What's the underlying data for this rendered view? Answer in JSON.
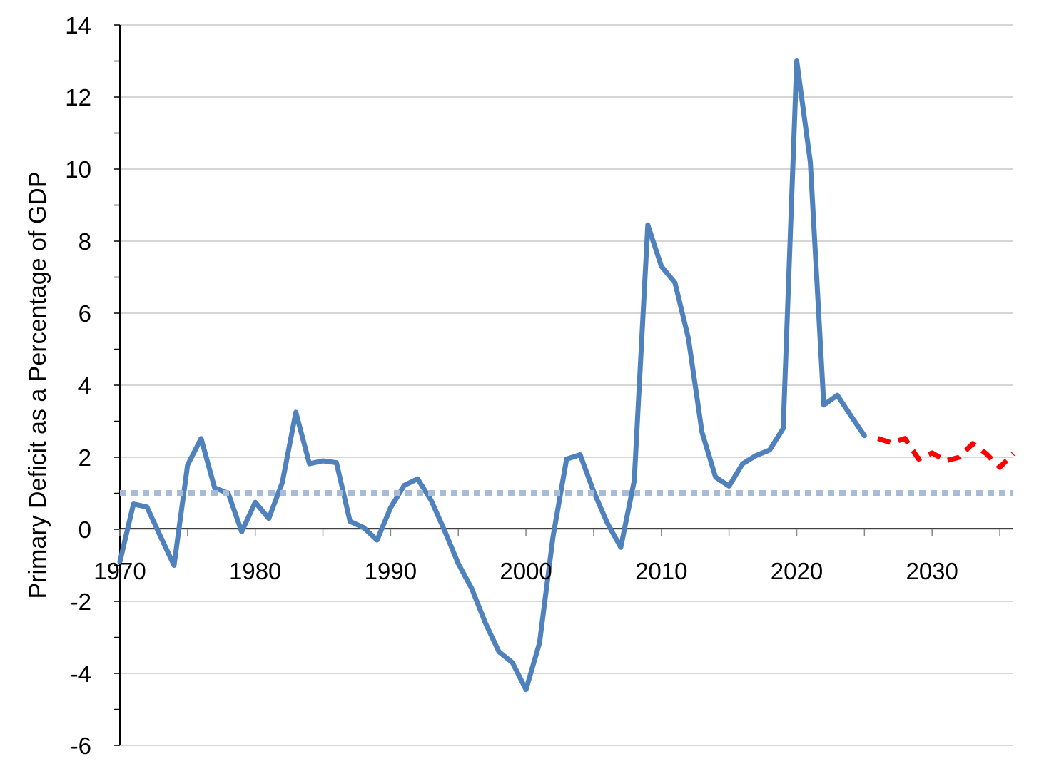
{
  "chart_data": {
    "type": "line",
    "title": "",
    "xlabel": "",
    "ylabel": "Primary Deficit as a Percentage of GDP",
    "xlim": [
      1970,
      2036
    ],
    "ylim": [
      -6,
      14
    ],
    "x_ticks": [
      "1970",
      "1980",
      "1990",
      "2000",
      "2010",
      "2020",
      "2030"
    ],
    "y_ticks": [
      "14",
      "12",
      "10",
      "8",
      "6",
      "4",
      "2",
      "0",
      "-2",
      "-4",
      "-6"
    ],
    "grid": "horizontal",
    "series": [
      {
        "style": "solid",
        "color": "#4F81BD",
        "points": [
          [
            1970,
            -0.9
          ],
          [
            1971,
            0.7
          ],
          [
            1972,
            0.62
          ],
          [
            1973,
            -0.2
          ],
          [
            1974,
            -1.0
          ],
          [
            1975,
            1.78
          ],
          [
            1976,
            2.52
          ],
          [
            1977,
            1.15
          ],
          [
            1978,
            1.0
          ],
          [
            1979,
            -0.07
          ],
          [
            1980,
            0.75
          ],
          [
            1981,
            0.3
          ],
          [
            1982,
            1.3
          ],
          [
            1983,
            3.25
          ],
          [
            1984,
            1.82
          ],
          [
            1985,
            1.9
          ],
          [
            1986,
            1.85
          ],
          [
            1987,
            0.22
          ],
          [
            1988,
            0.05
          ],
          [
            1989,
            -0.3
          ],
          [
            1990,
            0.6
          ],
          [
            1991,
            1.22
          ],
          [
            1992,
            1.4
          ],
          [
            1993,
            0.8
          ],
          [
            1994,
            -0.05
          ],
          [
            1995,
            -0.95
          ],
          [
            1996,
            -1.65
          ],
          [
            1997,
            -2.6
          ],
          [
            1998,
            -3.4
          ],
          [
            1999,
            -3.7
          ],
          [
            2000,
            -4.45
          ],
          [
            2001,
            -3.15
          ],
          [
            2002,
            -0.2
          ],
          [
            2003,
            1.95
          ],
          [
            2004,
            2.07
          ],
          [
            2005,
            1.05
          ],
          [
            2006,
            0.18
          ],
          [
            2007,
            -0.5
          ],
          [
            2008,
            1.35
          ],
          [
            2009,
            8.45
          ],
          [
            2010,
            7.3
          ],
          [
            2011,
            6.85
          ],
          [
            2012,
            5.3
          ],
          [
            2013,
            2.7
          ],
          [
            2014,
            1.45
          ],
          [
            2015,
            1.2
          ],
          [
            2016,
            1.82
          ],
          [
            2017,
            2.05
          ],
          [
            2018,
            2.2
          ],
          [
            2019,
            2.8
          ],
          [
            2020,
            13.0
          ],
          [
            2021,
            10.2
          ],
          [
            2022,
            3.45
          ],
          [
            2023,
            3.72
          ],
          [
            2024,
            3.15
          ],
          [
            2025,
            2.6
          ]
        ]
      },
      {
        "style": "dashed",
        "color": "#FF0000",
        "points": [
          [
            2026,
            2.52
          ],
          [
            2027,
            2.4
          ],
          [
            2028,
            2.52
          ],
          [
            2029,
            1.95
          ],
          [
            2030,
            2.12
          ],
          [
            2031,
            1.9
          ],
          [
            2032,
            2.0
          ],
          [
            2033,
            2.38
          ],
          [
            2034,
            2.1
          ],
          [
            2035,
            1.72
          ],
          [
            2036,
            2.1
          ]
        ]
      },
      {
        "style": "dotted",
        "color": "#A9BCD6",
        "points": [
          [
            1970,
            1.0
          ],
          [
            2036,
            1.0
          ]
        ]
      }
    ]
  }
}
